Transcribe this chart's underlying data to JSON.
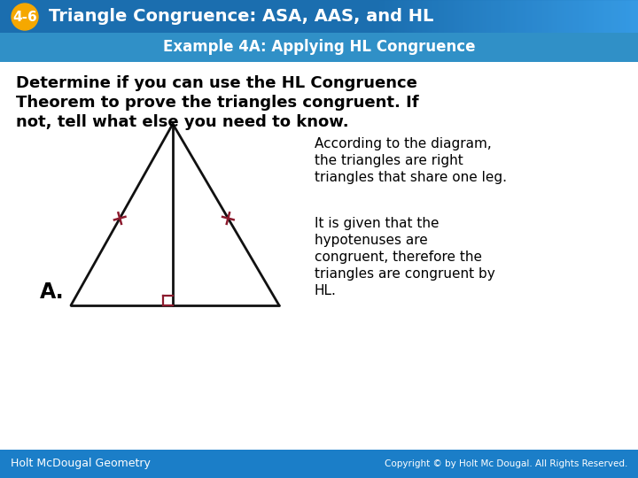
{
  "header_bg_color": "#1b6eaf",
  "header_text": "Triangle Congruence: ASA, AAS, and HL",
  "badge_color": "#f5a800",
  "badge_text": "4-6",
  "subheader_text": "Example 4A: Applying HL Congruence",
  "subheader_bg": "#3090c7",
  "body_bg": "#e8f4fb",
  "main_text_line1": "Determine if you can use the HL Congruence",
  "main_text_line2": "Theorem to prove the triangles congruent. If",
  "main_text_line3": "not, tell what else you need to know.",
  "right_text1_line1": "According to the diagram,",
  "right_text1_line2": "the triangles are right",
  "right_text1_line3": "triangles that share one leg.",
  "right_text2_line1": "It is given that the",
  "right_text2_line2": "hypotenuses are",
  "right_text2_line3": "congruent, therefore the",
  "right_text2_line4": "triangles are congruent by",
  "right_text2_line5": "HL.",
  "label_A": "A.",
  "footer_left": "Holt McDougal Geometry",
  "footer_right": "Copyright © by Holt Mc Dougal. All Rights Reserved.",
  "footer_bg": "#1b7ec8",
  "tick_color": "#8b1a2d",
  "triangle_color": "#111111",
  "right_angle_color": "#8b1a2d",
  "fig_width": 7.2,
  "fig_height": 5.4,
  "dpi": 100
}
